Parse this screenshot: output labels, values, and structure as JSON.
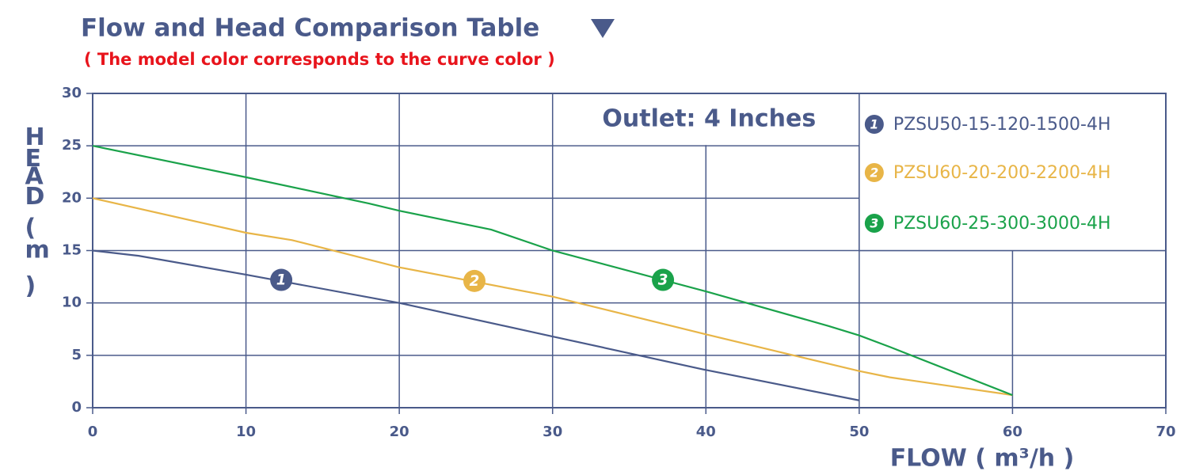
{
  "chart_data": {
    "type": "line",
    "title": "Flow and Head Comparison Table",
    "subtitle": "( The model color corresponds to the curve color )",
    "annotation": "Outlet: 4 Inches",
    "xlabel": "FLOW ( m³/h )",
    "ylabel": "HEAD ( m )",
    "xlim": [
      0,
      70
    ],
    "xticks": [
      0,
      10,
      20,
      30,
      40,
      50,
      60,
      70
    ],
    "ylim": [
      0,
      30
    ],
    "yticks": [
      0,
      5,
      10,
      15,
      20,
      25,
      30
    ],
    "grid": true,
    "legend": "top-right",
    "series": [
      {
        "name": "PZSU50-15-120-1500-4H",
        "badge": "1",
        "color": "#4a5a8a",
        "x": [
          0,
          3,
          10,
          20,
          30,
          40,
          50
        ],
        "values": [
          15,
          14.5,
          12.7,
          10,
          6.8,
          3.6,
          0.7
        ],
        "badge_point": [
          12.3,
          12.2
        ]
      },
      {
        "name": "PZSU60-20-200-2200-4H",
        "badge": "2",
        "color": "#e8b547",
        "x": [
          0,
          10,
          13,
          20,
          30,
          40,
          50,
          52,
          60
        ],
        "values": [
          20,
          16.7,
          16,
          13.4,
          10.6,
          7,
          3.5,
          2.9,
          1.2
        ],
        "badge_point": [
          24.9,
          12.1
        ]
      },
      {
        "name": "PZSU60-25-300-3000-4H",
        "badge": "3",
        "color": "#1aa24a",
        "x": [
          0,
          10,
          18,
          20,
          26,
          30,
          40,
          48,
          50,
          52,
          60
        ],
        "values": [
          25,
          22,
          19.5,
          18.8,
          17,
          15,
          11.1,
          7.8,
          6.9,
          5.8,
          1.2
        ],
        "badge_point": [
          37.2,
          12.2
        ]
      }
    ]
  }
}
